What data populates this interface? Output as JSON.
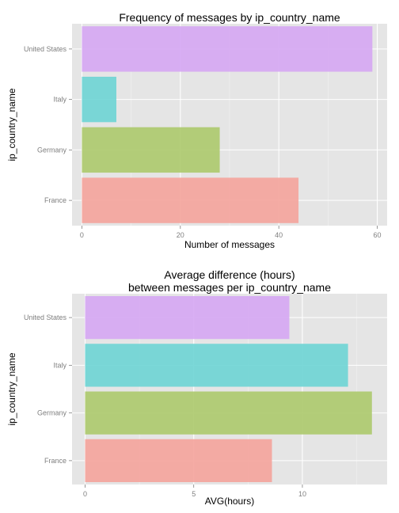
{
  "chart_data": [
    {
      "type": "bar",
      "orientation": "horizontal",
      "title": [
        "Frequency of messages by ip_country_name"
      ],
      "xlabel": "Number of messages",
      "ylabel": "ip_country_name",
      "categories": [
        "France",
        "Germany",
        "Italy",
        "United States"
      ],
      "values": [
        44,
        28,
        7,
        59
      ],
      "colors": [
        "#f4a39b",
        "#acc96b",
        "#6dd4d4",
        "#d5a6f3"
      ],
      "xlim": [
        -2,
        62
      ],
      "xticks": [
        0,
        20,
        40,
        60
      ],
      "xtick_labels": [
        "0",
        "20",
        "40",
        "60"
      ],
      "grid": true
    },
    {
      "type": "bar",
      "orientation": "horizontal",
      "title": [
        "Average difference (hours)",
        "between messages per ip_country_name"
      ],
      "xlabel": "AVG(hours)",
      "ylabel": "ip_country_name",
      "categories": [
        "France",
        "Germany",
        "Italy",
        "United States"
      ],
      "values": [
        8.6,
        13.2,
        12.1,
        9.4
      ],
      "colors": [
        "#f4a39b",
        "#acc96b",
        "#6dd4d4",
        "#d5a6f3"
      ],
      "xlim": [
        -0.6,
        13.9
      ],
      "xticks": [
        0,
        5,
        10
      ],
      "xtick_labels": [
        "0",
        "5",
        "10"
      ],
      "grid": true
    }
  ]
}
